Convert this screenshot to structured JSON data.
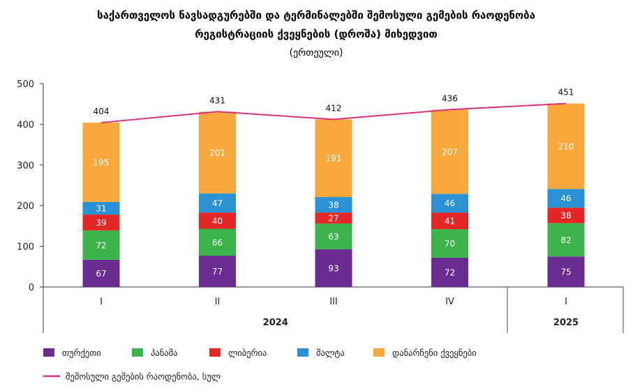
{
  "chart_data": {
    "type": "bar",
    "stacked": true,
    "title_lines": [
      "საქართველოს ნავსადგურებში და ტერმინალებში შემოსული გემების რაოდენობა",
      "რეგისტრაციის ქვეყნების (დროშა) მიხედვით"
    ],
    "subtitle": "(ერთეული)",
    "categories": [
      "I",
      "II",
      "III",
      "IV",
      "I"
    ],
    "year_labels": [
      {
        "label": "2024",
        "from": 0,
        "to": 3
      },
      {
        "label": "2025",
        "from": 4,
        "to": 4
      }
    ],
    "ylim": [
      0,
      500
    ],
    "yticks": [
      0,
      100,
      200,
      300,
      400,
      500
    ],
    "grid": false,
    "legend_position": "bottom-left",
    "series": [
      {
        "name": "თურქეთი",
        "color": "#6a2c91",
        "values": [
          67,
          77,
          93,
          72,
          75
        ]
      },
      {
        "name": "პანამა",
        "color": "#3cb44b",
        "values": [
          72,
          66,
          63,
          70,
          82
        ]
      },
      {
        "name": "ლიბერია",
        "color": "#e32726",
        "values": [
          39,
          40,
          27,
          41,
          38
        ]
      },
      {
        "name": "მალტა",
        "color": "#2a92d4",
        "values": [
          31,
          47,
          38,
          46,
          46
        ]
      },
      {
        "name": "დანარჩენი ქვეყნები",
        "color": "#f8a83d",
        "values": [
          195,
          201,
          191,
          207,
          210
        ]
      }
    ],
    "total": {
      "name": "შემოსული გემების რაოდენობა, სულ",
      "color": "#d6337c",
      "values": [
        404,
        431,
        412,
        436,
        451
      ]
    }
  }
}
